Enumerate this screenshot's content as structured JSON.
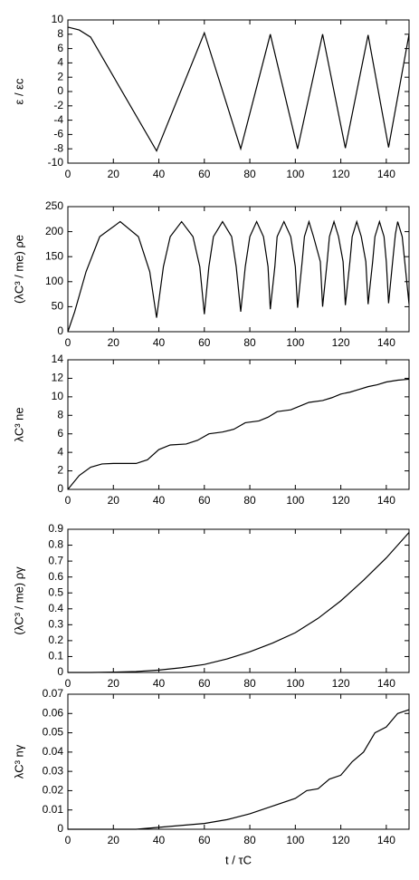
{
  "chart_data": [
    {
      "type": "line",
      "ylabel": "ε / εc",
      "color": "#000000",
      "x": [
        0,
        5,
        10,
        39,
        60,
        76,
        89,
        101,
        112,
        122,
        132,
        141,
        150
      ],
      "values": [
        9,
        8.6,
        7.6,
        -8.3,
        8.2,
        -8,
        8,
        -8,
        8,
        -7.9,
        7.9,
        -7.8,
        8
      ],
      "xlim": [
        0,
        150
      ],
      "xticks": [
        0,
        20,
        40,
        60,
        80,
        100,
        120,
        140
      ],
      "ylim": [
        -10,
        10
      ],
      "yticks": [
        -10,
        -8,
        -6,
        -4,
        -2,
        0,
        2,
        4,
        6,
        8,
        10
      ]
    },
    {
      "type": "line",
      "ylabel": "(λC³ / me) ρe",
      "color": "#000000",
      "x": [
        0,
        3,
        8,
        14,
        23,
        31,
        36,
        39,
        42,
        45,
        50,
        55,
        58,
        60,
        62,
        64,
        68,
        72,
        74,
        76,
        78,
        80,
        83,
        86,
        88,
        89,
        91,
        92,
        95,
        98,
        100,
        101,
        103,
        104,
        106,
        108,
        111,
        112,
        114,
        115,
        117,
        119,
        121,
        122,
        124,
        125,
        127,
        129,
        131,
        132,
        134,
        135,
        137,
        139,
        140,
        141,
        143,
        144,
        145,
        147,
        149,
        150
      ],
      "values": [
        0,
        40,
        120,
        190,
        220,
        190,
        120,
        28,
        130,
        190,
        220,
        190,
        130,
        35,
        130,
        190,
        220,
        190,
        130,
        40,
        130,
        190,
        220,
        190,
        130,
        45,
        130,
        190,
        220,
        190,
        130,
        48,
        140,
        190,
        220,
        190,
        140,
        50,
        140,
        190,
        220,
        190,
        140,
        53,
        140,
        190,
        220,
        190,
        140,
        55,
        140,
        190,
        220,
        190,
        140,
        57,
        150,
        195,
        220,
        190,
        100,
        55
      ],
      "xlim": [
        0,
        150
      ],
      "xticks": [
        0,
        20,
        40,
        60,
        80,
        100,
        120,
        140
      ],
      "ylim": [
        0,
        250
      ],
      "yticks": [
        0,
        50,
        100,
        150,
        200,
        250
      ]
    },
    {
      "type": "line",
      "ylabel": "λC³ ne",
      "color": "#000000",
      "x": [
        0,
        5,
        10,
        15,
        20,
        30,
        35,
        40,
        45,
        52,
        57,
        62,
        68,
        73,
        78,
        84,
        88,
        92,
        98,
        102,
        106,
        112,
        116,
        120,
        124,
        128,
        132,
        136,
        140,
        145,
        150
      ],
      "values": [
        0,
        1.5,
        2.4,
        2.75,
        2.8,
        2.8,
        3.2,
        4.3,
        4.8,
        4.9,
        5.3,
        6.0,
        6.2,
        6.5,
        7.2,
        7.4,
        7.8,
        8.4,
        8.6,
        9.0,
        9.4,
        9.6,
        9.9,
        10.3,
        10.5,
        10.8,
        11.1,
        11.3,
        11.6,
        11.8,
        11.9
      ],
      "xlim": [
        0,
        150
      ],
      "xticks": [
        0,
        20,
        40,
        60,
        80,
        100,
        120,
        140
      ],
      "ylim": [
        0,
        14
      ],
      "yticks": [
        0,
        2,
        4,
        6,
        8,
        10,
        12,
        14
      ]
    },
    {
      "type": "line",
      "ylabel": "(λC³ / me) ργ",
      "color": "#000000",
      "x": [
        0,
        10,
        20,
        30,
        40,
        50,
        60,
        70,
        80,
        90,
        100,
        110,
        120,
        130,
        140,
        150
      ],
      "values": [
        0,
        0,
        0.002,
        0.006,
        0.015,
        0.03,
        0.05,
        0.085,
        0.13,
        0.185,
        0.25,
        0.34,
        0.45,
        0.58,
        0.72,
        0.88
      ],
      "xlim": [
        0,
        150
      ],
      "xticks": [
        0,
        20,
        40,
        60,
        80,
        100,
        120,
        140
      ],
      "ylim": [
        0,
        0.9
      ],
      "yticks": [
        0,
        0.1,
        0.2,
        0.3,
        0.4,
        0.5,
        0.6,
        0.7,
        0.8,
        0.9
      ]
    },
    {
      "type": "line",
      "ylabel": "λC³ nγ",
      "xlabel": "t / τC",
      "color": "#000000",
      "x": [
        0,
        30,
        40,
        50,
        60,
        70,
        80,
        90,
        100,
        105,
        110,
        115,
        120,
        125,
        130,
        135,
        140,
        145,
        150
      ],
      "values": [
        0,
        0,
        0.001,
        0.002,
        0.003,
        0.005,
        0.008,
        0.012,
        0.016,
        0.02,
        0.021,
        0.026,
        0.028,
        0.035,
        0.04,
        0.05,
        0.053,
        0.06,
        0.062
      ],
      "xlim": [
        0,
        150
      ],
      "xticks": [
        0,
        20,
        40,
        60,
        80,
        100,
        120,
        140
      ],
      "ylim": [
        0,
        0.07
      ],
      "yticks": [
        0,
        0.01,
        0.02,
        0.03,
        0.04,
        0.05,
        0.06,
        0.07
      ]
    }
  ]
}
